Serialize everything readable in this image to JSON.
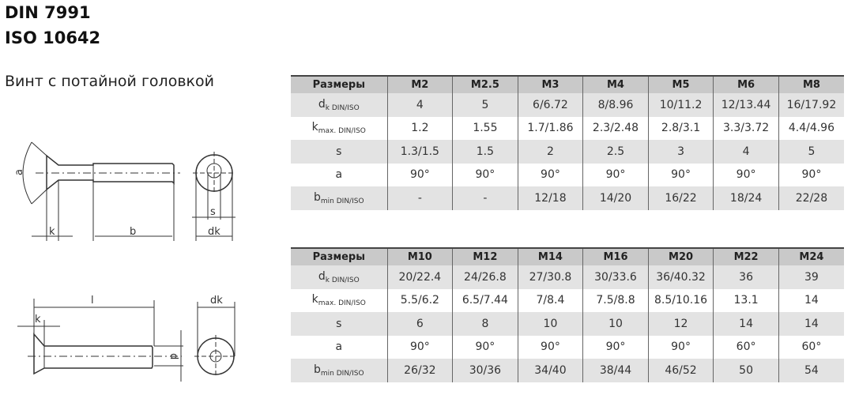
{
  "header": {
    "title_line1": "DIN 7991",
    "title_line2": "ISO 10642",
    "subtitle": "Винт с потайной головкой"
  },
  "drawing_labels": {
    "a": "a",
    "k": "k",
    "b": "b",
    "s": "s",
    "dk_sub": "dk",
    "l": "l",
    "k2": "k",
    "dk": "dk",
    "d": "d"
  },
  "tables": [
    {
      "header_label": "Размеры",
      "sizes": [
        "M2",
        "M2.5",
        "M3",
        "M4",
        "M5",
        "M6",
        "M8"
      ],
      "rows": [
        {
          "main": "d",
          "sub": "k DIN/ISO",
          "values": [
            "4",
            "5",
            "6/6.72",
            "8/8.96",
            "10/11.2",
            "12/13.44",
            "16/17.92"
          ]
        },
        {
          "main": "k",
          "sub": "max. DIN/ISO",
          "values": [
            "1.2",
            "1.55",
            "1.7/1.86",
            "2.3/2.48",
            "2.8/3.1",
            "3.3/3.72",
            "4.4/4.96"
          ]
        },
        {
          "main": "s",
          "sub": "",
          "values": [
            "1.3/1.5",
            "1.5",
            "2",
            "2.5",
            "3",
            "4",
            "5"
          ]
        },
        {
          "main": "a",
          "sub": "",
          "values": [
            "90°",
            "90°",
            "90°",
            "90°",
            "90°",
            "90°",
            "90°"
          ]
        },
        {
          "main": "b",
          "sub": "min DIN/ISO",
          "values": [
            "-",
            "-",
            "12/18",
            "14/20",
            "16/22",
            "18/24",
            "22/28"
          ]
        }
      ]
    },
    {
      "header_label": "Размеры",
      "sizes": [
        "M10",
        "M12",
        "M14",
        "M16",
        "M20",
        "M22",
        "M24"
      ],
      "rows": [
        {
          "main": "d",
          "sub": "k DIN/ISO",
          "values": [
            "20/22.4",
            "24/26.8",
            "27/30.8",
            "30/33.6",
            "36/40.32",
            "36",
            "39"
          ]
        },
        {
          "main": "k",
          "sub": "max. DIN/ISO",
          "values": [
            "5.5/6.2",
            "6.5/7.44",
            "7/8.4",
            "7.5/8.8",
            "8.5/10.16",
            "13.1",
            "14"
          ]
        },
        {
          "main": "s",
          "sub": "",
          "values": [
            "6",
            "8",
            "10",
            "10",
            "12",
            "14",
            "14"
          ]
        },
        {
          "main": "a",
          "sub": "",
          "values": [
            "90°",
            "90°",
            "90°",
            "90°",
            "90°",
            "60°",
            "60°"
          ]
        },
        {
          "main": "b",
          "sub": "min DIN/ISO",
          "values": [
            "26/32",
            "30/36",
            "34/40",
            "38/44",
            "46/52",
            "50",
            "54"
          ]
        }
      ]
    }
  ]
}
